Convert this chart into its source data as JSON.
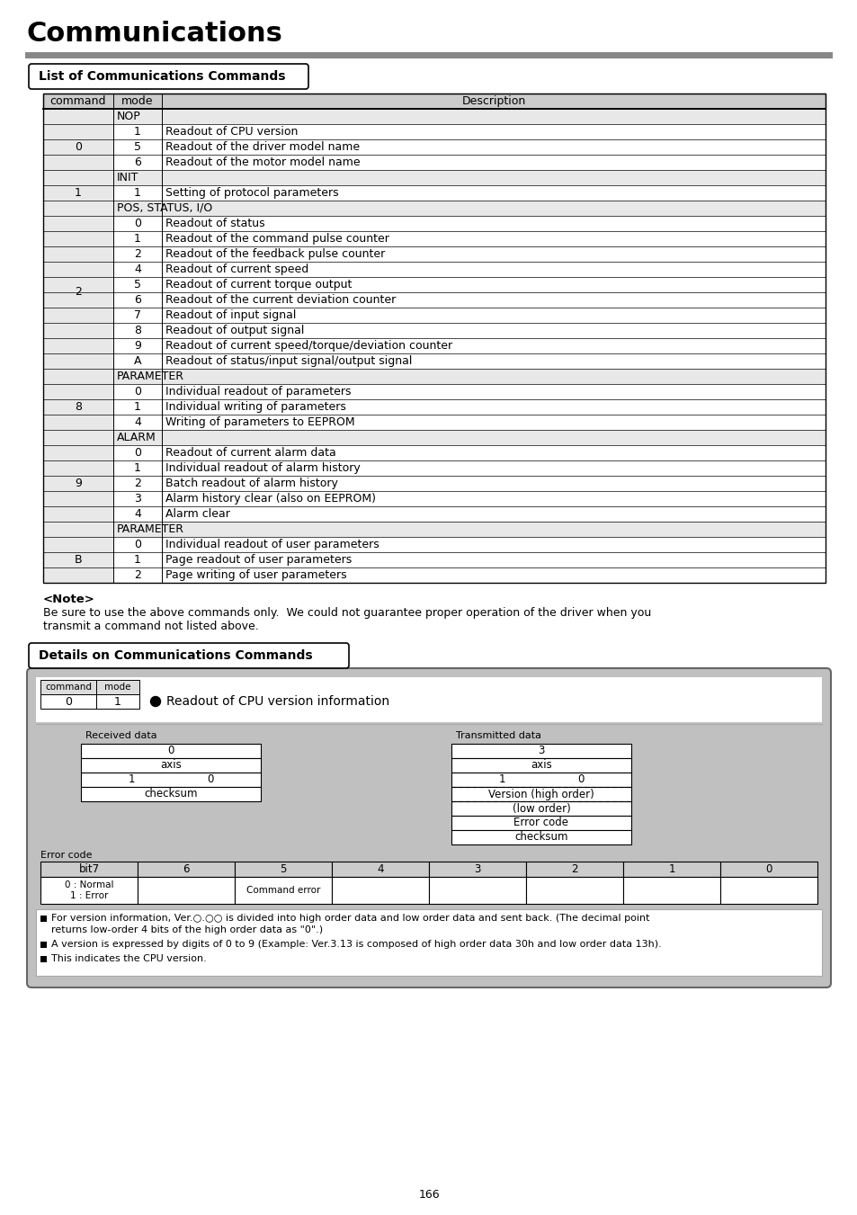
{
  "page_title": "Communications",
  "section1_title": "List of Communications Commands",
  "table_data": [
    [
      "",
      "",
      "NOP"
    ],
    [
      "0",
      "1",
      "Readout of CPU version"
    ],
    [
      "0",
      "5",
      "Readout of the driver model name"
    ],
    [
      "0",
      "6",
      "Readout of the motor model name"
    ],
    [
      "",
      "",
      "INIT"
    ],
    [
      "1",
      "1",
      "Setting of protocol parameters"
    ],
    [
      "",
      "",
      "POS, STATUS, I/O"
    ],
    [
      "2",
      "0",
      "Readout of status"
    ],
    [
      "2",
      "1",
      "Readout of the command pulse counter"
    ],
    [
      "2",
      "2",
      "Readout of the feedback pulse counter"
    ],
    [
      "2",
      "4",
      "Readout of current speed"
    ],
    [
      "2",
      "5",
      "Readout of current torque output"
    ],
    [
      "2",
      "6",
      "Readout of the current deviation counter"
    ],
    [
      "2",
      "7",
      "Readout of input signal"
    ],
    [
      "2",
      "8",
      "Readout of output signal"
    ],
    [
      "2",
      "9",
      "Readout of current speed/torque/deviation counter"
    ],
    [
      "2",
      "A",
      "Readout of status/input signal/output signal"
    ],
    [
      "",
      "",
      "PARAMETER"
    ],
    [
      "8",
      "0",
      "Individual readout of parameters"
    ],
    [
      "8",
      "1",
      "Individual writing of parameters"
    ],
    [
      "8",
      "4",
      "Writing of parameters to EEPROM"
    ],
    [
      "",
      "",
      "ALARM"
    ],
    [
      "9",
      "0",
      "Readout of current alarm data"
    ],
    [
      "9",
      "1",
      "Individual readout of alarm history"
    ],
    [
      "9",
      "2",
      "Batch readout of alarm history"
    ],
    [
      "9",
      "3",
      "Alarm history clear (also on EEPROM)"
    ],
    [
      "9",
      "4",
      "Alarm clear"
    ],
    [
      "",
      "",
      "PARAMETER"
    ],
    [
      "B",
      "0",
      "Individual readout of user parameters"
    ],
    [
      "B",
      "1",
      "Page readout of user parameters"
    ],
    [
      "B",
      "2",
      "Page writing of user parameters"
    ]
  ],
  "section_rows": [
    0,
    4,
    6,
    17,
    21,
    27
  ],
  "cmd_groups": [
    [
      "0",
      1,
      3
    ],
    [
      "1",
      5,
      5
    ],
    [
      "2",
      7,
      16
    ],
    [
      "8",
      18,
      20
    ],
    [
      "9",
      22,
      26
    ],
    [
      "B",
      28,
      30
    ]
  ],
  "note_title": "<Note>",
  "note_line1": "Be sure to use the above commands only.  We could not guarantee proper operation of the driver when you",
  "note_line2": "transmit a command not listed above.",
  "section2_title": "Details on Communications Commands",
  "detail_cmd": "0",
  "detail_mode": "1",
  "detail_title": "Readout of CPU version information",
  "received_label": "Received data",
  "transmitted_label": "Transmitted data",
  "error_bits": [
    "bit7",
    "6",
    "5",
    "4",
    "3",
    "2",
    "1",
    "0"
  ],
  "notes": [
    "For version information, Ver.○.○○ is divided into high order data and low order data and sent back. (The decimal point",
    "returns low-order 4 bits of the high order data as \"0\".)",
    "A version is expressed by digits of 0 to 9 (Example: Ver.3.13 is composed of high order data 30h and low order data 13h).",
    "This indicates the CPU version."
  ],
  "page_number": "166"
}
